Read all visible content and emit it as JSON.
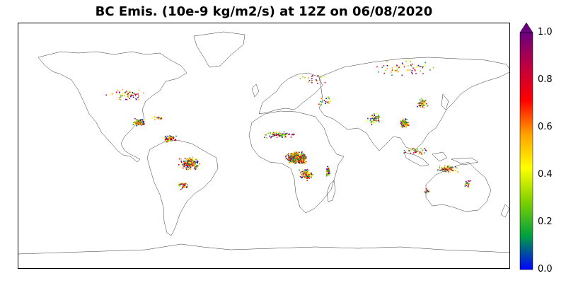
{
  "title": "BC Emis. (10e-9 kg/m2/s) at 12Z on 06/08/2020",
  "colorbar": {
    "ticks": [
      "0.0",
      "0.2",
      "0.4",
      "0.6",
      "0.8",
      "1.0"
    ],
    "tick_values": [
      0.0,
      0.2,
      0.4,
      0.6,
      0.8,
      1.0
    ],
    "range": [
      0.0,
      1.0
    ],
    "extend": "max",
    "colors": [
      "#0000ff",
      "#00a040",
      "#7fd000",
      "#ffff00",
      "#ffa000",
      "#ff0000",
      "#c0003f",
      "#6a0080"
    ]
  },
  "map": {
    "projection": "PlateCarree",
    "extent_lon": [
      -180,
      180
    ],
    "extent_lat": [
      -90,
      90
    ],
    "coastline_color": "#000000",
    "fire_clusters": [
      {
        "region": "Central Africa",
        "lon": 23,
        "lat": -8,
        "spread_lon": 9,
        "spread_lat": 5,
        "count": 700
      },
      {
        "region": "Southern Africa",
        "lon": 30,
        "lat": -20,
        "spread_lon": 6,
        "spread_lat": 5,
        "count": 120
      },
      {
        "region": "Sahel",
        "lon": 10,
        "lat": 9,
        "spread_lon": 14,
        "spread_lat": 3,
        "count": 80
      },
      {
        "region": "Madagascar",
        "lon": 46,
        "lat": -18,
        "spread_lon": 2,
        "spread_lat": 5,
        "count": 40
      },
      {
        "region": "Central America",
        "lon": -92,
        "lat": 18,
        "spread_lon": 6,
        "spread_lat": 3,
        "count": 130
      },
      {
        "region": "Cuba / Caribbean",
        "lon": -78,
        "lat": 21,
        "spread_lon": 5,
        "spread_lat": 1.5,
        "count": 25
      },
      {
        "region": "Northern South America",
        "lon": -70,
        "lat": 6,
        "spread_lon": 6,
        "spread_lat": 3,
        "count": 80
      },
      {
        "region": "Amazon",
        "lon": -55,
        "lat": -12,
        "spread_lon": 9,
        "spread_lat": 6,
        "count": 200
      },
      {
        "region": "Southern South America",
        "lon": -60,
        "lat": -28,
        "spread_lon": 5,
        "spread_lat": 4,
        "count": 40
      },
      {
        "region": "India",
        "lon": 80,
        "lat": 21,
        "spread_lon": 6,
        "spread_lat": 6,
        "count": 50
      },
      {
        "region": "Indochina",
        "lon": 102,
        "lat": 17,
        "spread_lon": 4,
        "spread_lat": 4,
        "count": 100
      },
      {
        "region": "Eastern China",
        "lon": 115,
        "lat": 32,
        "spread_lon": 5,
        "spread_lat": 5,
        "count": 60
      },
      {
        "region": "Indonesia",
        "lon": 110,
        "lat": -3,
        "spread_lon": 12,
        "spread_lat": 4,
        "count": 40
      },
      {
        "region": "Northern Australia",
        "lon": 133,
        "lat": -16,
        "spread_lon": 9,
        "spread_lat": 3,
        "count": 90
      },
      {
        "region": "Eastern Australia",
        "lon": 148,
        "lat": -27,
        "spread_lon": 3,
        "spread_lat": 4,
        "count": 25
      },
      {
        "region": "Western Australia",
        "lon": 118,
        "lat": -32,
        "spread_lon": 4,
        "spread_lat": 3,
        "count": 15
      },
      {
        "region": "United States",
        "lon": -100,
        "lat": 38,
        "spread_lon": 17,
        "spread_lat": 6,
        "count": 60
      },
      {
        "region": "Eastern Europe",
        "lon": 35,
        "lat": 50,
        "spread_lon": 10,
        "spread_lat": 5,
        "count": 20
      },
      {
        "region": "Siberia",
        "lon": 100,
        "lat": 58,
        "spread_lon": 30,
        "spread_lat": 7,
        "count": 60
      },
      {
        "region": "Middle East",
        "lon": 45,
        "lat": 33,
        "spread_lon": 8,
        "spread_lat": 5,
        "count": 20
      }
    ]
  }
}
